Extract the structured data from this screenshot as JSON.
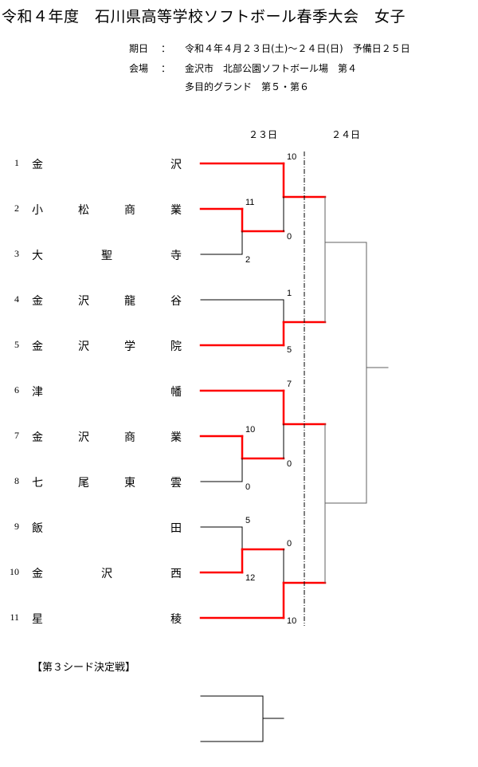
{
  "title": "令和４年度　石川県高等学校ソフトボール春季大会　女子",
  "info": {
    "date_label": "期日",
    "date_value": "令和４年４月２３日(土)～２４日(日)　予備日２５日",
    "venue_label": "会場",
    "venue_value": "金沢市　北部公園ソフトボール場　第４",
    "venue_value2": "多目的グランド　第５・第６",
    "separator": "："
  },
  "days": [
    "２３日",
    "２４日"
  ],
  "teams": [
    {
      "num": "1",
      "name": [
        "金",
        "沢"
      ]
    },
    {
      "num": "2",
      "name": [
        "小",
        "松",
        "商",
        "業"
      ]
    },
    {
      "num": "3",
      "name": [
        "大",
        "聖",
        "寺"
      ]
    },
    {
      "num": "4",
      "name": [
        "金",
        "沢",
        "龍",
        "谷"
      ]
    },
    {
      "num": "5",
      "name": [
        "金",
        "沢",
        "学",
        "院"
      ]
    },
    {
      "num": "6",
      "name": [
        "津",
        "幡"
      ]
    },
    {
      "num": "7",
      "name": [
        "金",
        "沢",
        "商",
        "業"
      ]
    },
    {
      "num": "8",
      "name": [
        "七",
        "尾",
        "東",
        "雲"
      ]
    },
    {
      "num": "9",
      "name": [
        "飯",
        "田"
      ]
    },
    {
      "num": "10",
      "name": [
        "金",
        "沢",
        "西"
      ]
    },
    {
      "num": "11",
      "name": [
        "星",
        "稜"
      ]
    }
  ],
  "scores": {
    "r1_a_top": "11",
    "r1_a_bottom": "2",
    "qf1_top": "10",
    "qf1_bottom": "0",
    "qf2_top": "1",
    "qf2_bottom": "5",
    "qf3_top": "7",
    "qf3_bottom": "0",
    "r1_b_top": "10",
    "r1_b_bottom": "0",
    "r1_c_top": "5",
    "r1_c_bottom": "12",
    "qf4_top": "0",
    "qf4_bottom": "10"
  },
  "seed_match_label": "【第３シード決定戦】",
  "colors": {
    "winner_line": "#ff0000",
    "line": "#000000",
    "later_round_line": "#606060"
  }
}
